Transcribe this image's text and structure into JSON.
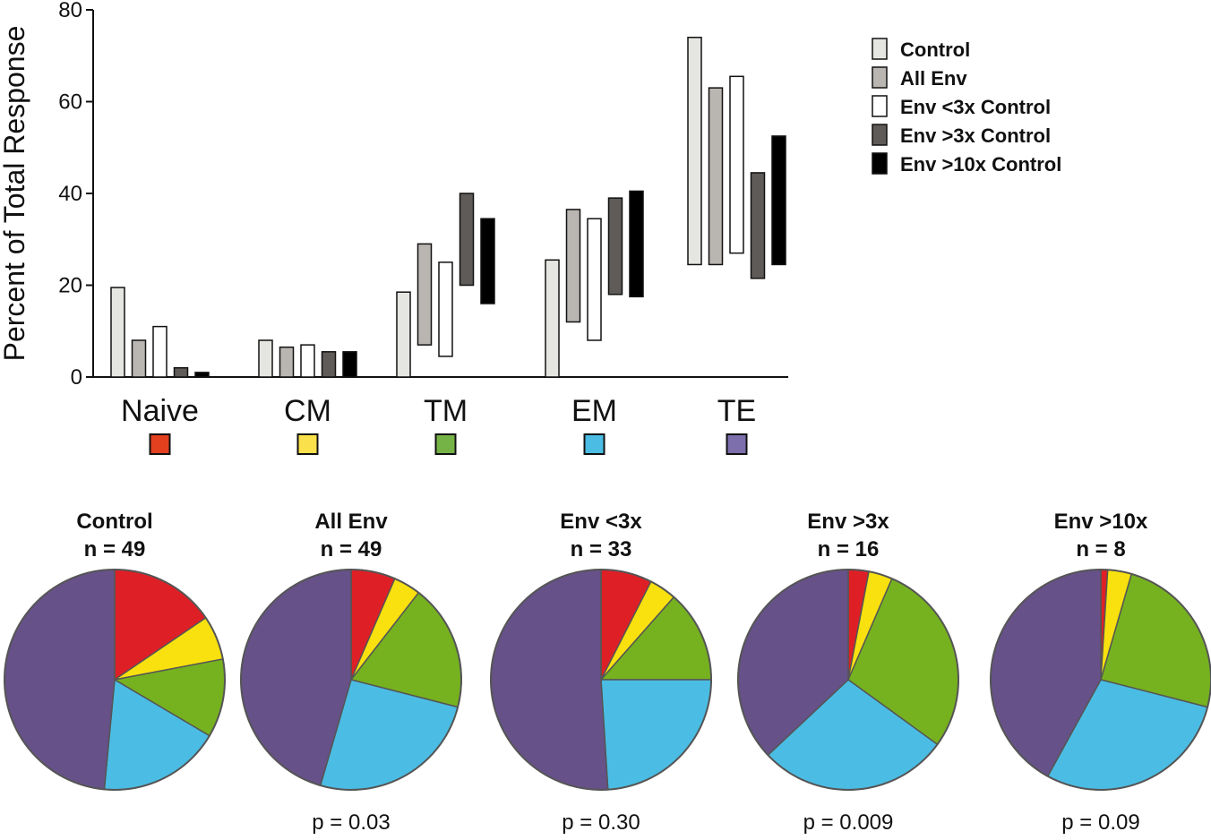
{
  "chart_data": [
    {
      "type": "bar",
      "subtype": "floating-range",
      "ylabel": "Percent of Total Response",
      "ylim": [
        0,
        80
      ],
      "yticks": [
        0,
        20,
        40,
        60,
        80
      ],
      "categories": [
        "Naive",
        "CM",
        "TM",
        "EM",
        "TE"
      ],
      "category_colors": [
        "#e2401f",
        "#fae14b",
        "#76b347",
        "#4bbde4",
        "#7d6eac"
      ],
      "series": [
        {
          "name": "Control",
          "color": "#e5e5e2",
          "ranges": [
            [
              0,
              19.5
            ],
            [
              0,
              8
            ],
            [
              0,
              18.5
            ],
            [
              0,
              25.5
            ],
            [
              24.5,
              74
            ]
          ]
        },
        {
          "name": "All Env",
          "color": "#b9b6b2",
          "ranges": [
            [
              0,
              8
            ],
            [
              0,
              6.5
            ],
            [
              7,
              29
            ],
            [
              12,
              36.5
            ],
            [
              24.5,
              63
            ]
          ]
        },
        {
          "name": "Env <3x Control",
          "color": "#ffffff",
          "ranges": [
            [
              0,
              11
            ],
            [
              0,
              7
            ],
            [
              4.5,
              25
            ],
            [
              8,
              34.5
            ],
            [
              27,
              65.5
            ]
          ]
        },
        {
          "name": "Env >3x Control",
          "color": "#5f5b58",
          "ranges": [
            [
              0,
              2
            ],
            [
              0,
              5.5
            ],
            [
              20,
              40
            ],
            [
              18,
              39
            ],
            [
              21.5,
              44.5
            ]
          ]
        },
        {
          "name": "Env >10x Control",
          "color": "#000000",
          "ranges": [
            [
              0,
              1
            ],
            [
              0,
              5.5
            ],
            [
              16,
              34.5
            ],
            [
              17.5,
              40.5
            ],
            [
              24.5,
              52.5
            ]
          ]
        }
      ],
      "legend_position": "top-right"
    },
    {
      "type": "pie",
      "slice_order": [
        "Naive",
        "CM",
        "TM",
        "EM",
        "TE"
      ],
      "slice_colors": [
        "#df1f26",
        "#f8e10e",
        "#76b21f",
        "#4bbde4",
        "#665189"
      ],
      "pies": [
        {
          "title": "Control",
          "n_label": "n = 49",
          "p_label": "",
          "values": [
            15.5,
            6.5,
            11.5,
            18,
            48.5
          ]
        },
        {
          "title": "All Env",
          "n_label": "n = 49",
          "p_label": "p = 0.03",
          "values": [
            6.5,
            4,
            18.5,
            25.5,
            45.5
          ]
        },
        {
          "title": "Env <3x",
          "n_label": "n = 33",
          "p_label": "p = 0.30",
          "values": [
            7.5,
            4,
            13.5,
            24,
            51
          ]
        },
        {
          "title": "Env >3x",
          "n_label": "n = 16",
          "p_label": "p = 0.009",
          "values": [
            3,
            3.5,
            28.5,
            28,
            37
          ]
        },
        {
          "title": "Env >10x",
          "n_label": "n = 8",
          "p_label": "p = 0.09",
          "values": [
            1,
            3.5,
            24.5,
            29,
            42
          ]
        }
      ]
    }
  ]
}
